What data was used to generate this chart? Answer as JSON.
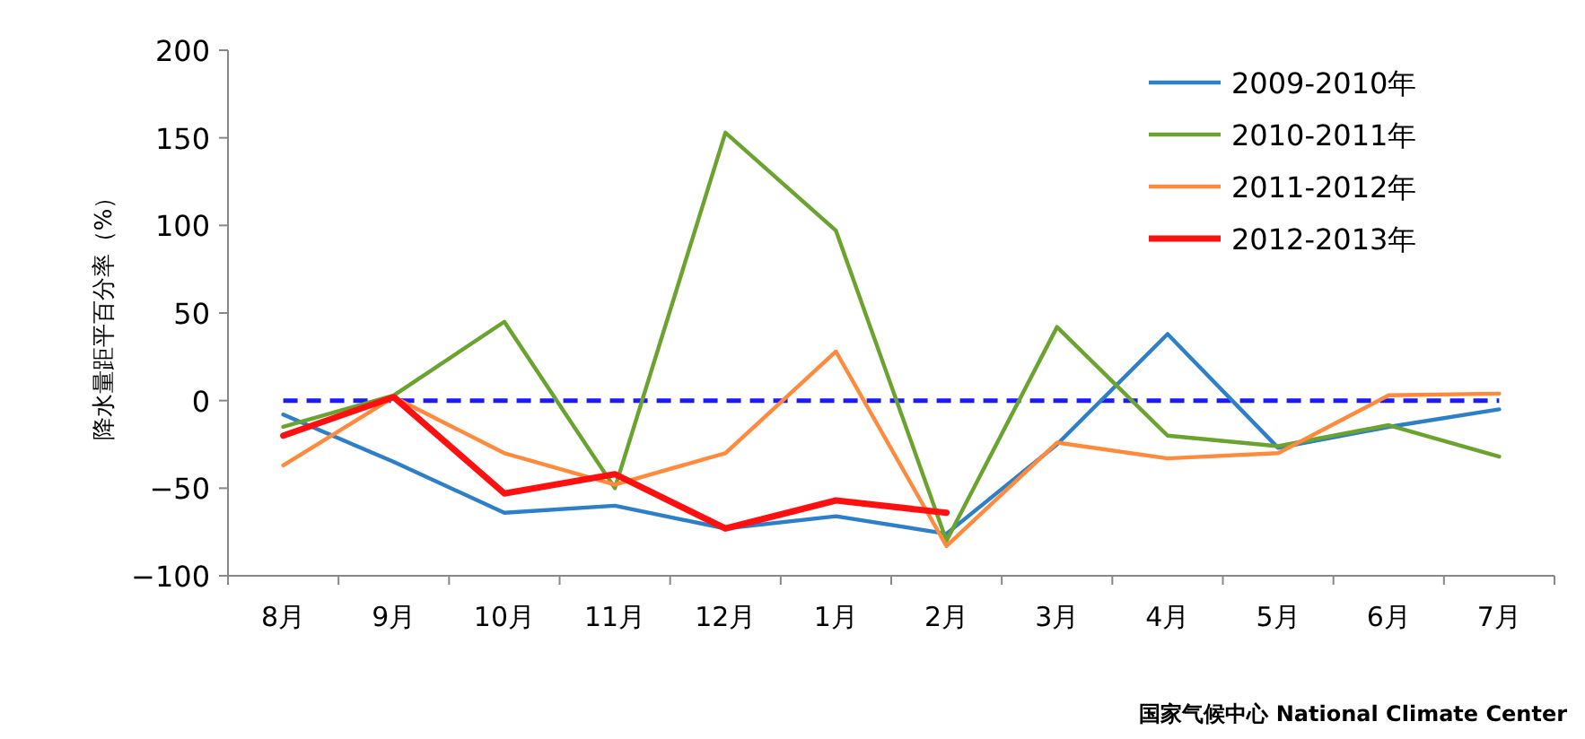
{
  "chart_data": {
    "type": "line",
    "ylabel": "降水量距平百分率（%）",
    "categories": [
      "8月",
      "9月",
      "10月",
      "11月",
      "12月",
      "1月",
      "2月",
      "3月",
      "4月",
      "5月",
      "6月",
      "7月"
    ],
    "series": [
      {
        "name": "2009-2010年",
        "color": "#2e7fc9",
        "values": [
          -8,
          -35,
          -64,
          -60,
          -73,
          -66,
          -76,
          -25,
          38,
          -27,
          -15,
          -5
        ]
      },
      {
        "name": "2010-2011年",
        "color": "#6aa42f",
        "values": [
          -15,
          3,
          45,
          -50,
          153,
          97,
          -80,
          42,
          -20,
          -26,
          -14,
          -32
        ]
      },
      {
        "name": "2011-2012年",
        "color": "#ff8a3c",
        "values": [
          -37,
          2,
          -30,
          -48,
          -30,
          28,
          -83,
          -24,
          -33,
          -30,
          3,
          4
        ]
      },
      {
        "name": "2012-2013年",
        "color": "#ff1010",
        "values": [
          -20,
          2,
          -53,
          -42,
          -73,
          -57,
          -64,
          null,
          null,
          null,
          null,
          null
        ]
      }
    ],
    "ylim": [
      -100,
      200
    ],
    "yticks": [
      -100,
      -50,
      0,
      50,
      100,
      150,
      200
    ],
    "ref_lines": [
      {
        "axis": "y",
        "value": 0,
        "color": "#1a1aff",
        "line_style": "dashed"
      }
    ],
    "legend": "top right",
    "grid": false,
    "annotations": [
      "国家气候中心 National Climate Center"
    ]
  }
}
